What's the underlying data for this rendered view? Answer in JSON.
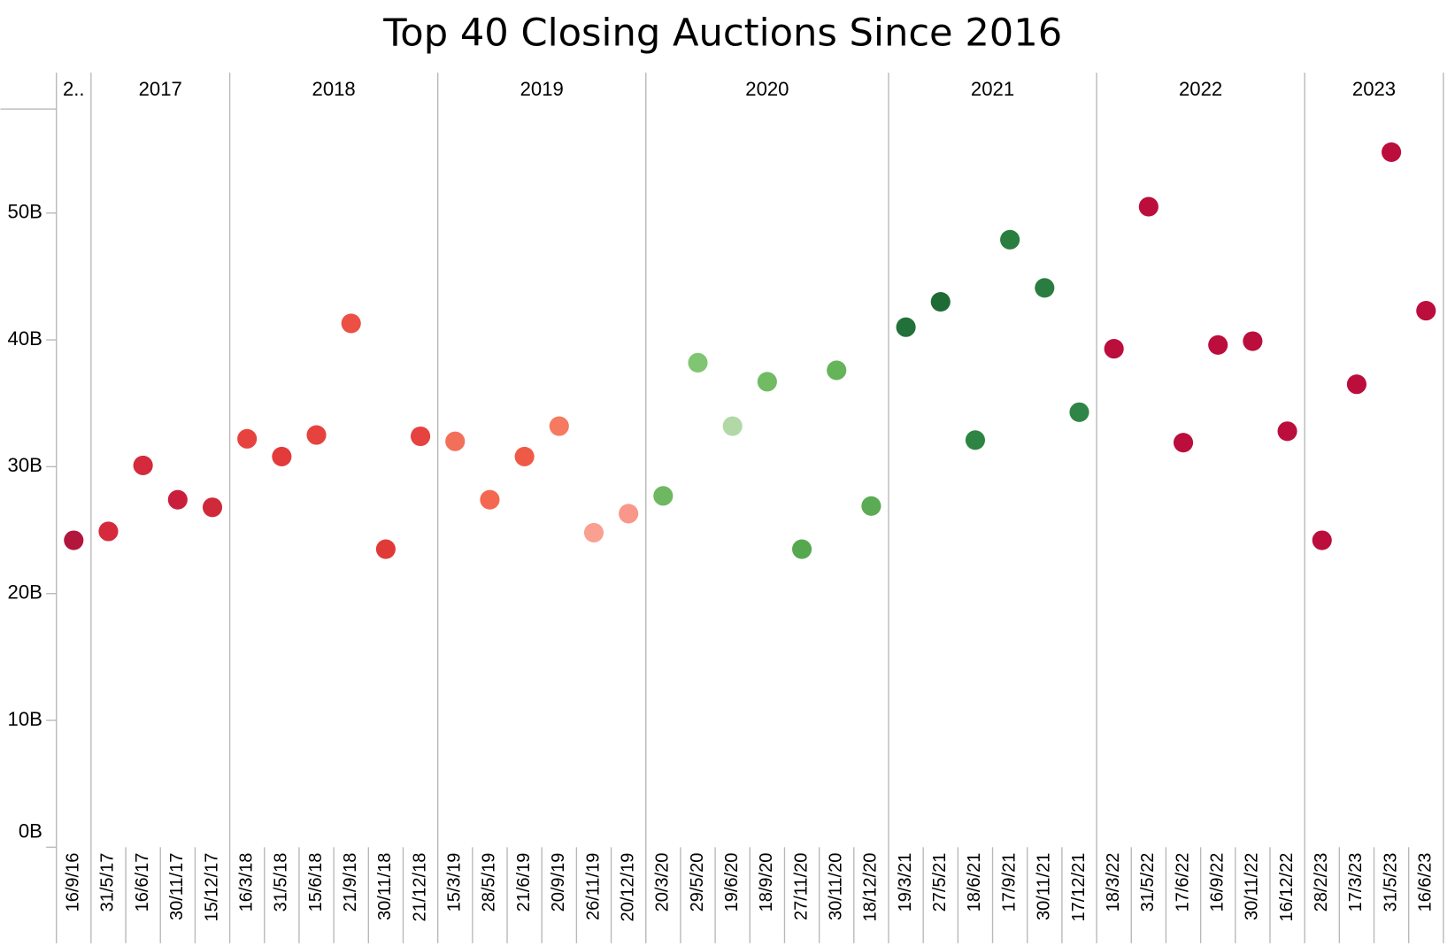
{
  "chart_data": {
    "type": "scatter",
    "title": "Top 40 Closing Auctions Since 2016",
    "ylim": [
      0,
      58.2
    ],
    "yticks": [
      {
        "value": 0,
        "label": "0B"
      },
      {
        "value": 10,
        "label": "10B"
      },
      {
        "value": 20,
        "label": "20B"
      },
      {
        "value": 30,
        "label": "30B"
      },
      {
        "value": 40,
        "label": "40B"
      },
      {
        "value": 50,
        "label": "50B"
      }
    ],
    "groups": [
      {
        "label": "2..",
        "categories": [
          "16/9/16"
        ],
        "values": [
          24.2
        ],
        "colors": [
          "#b3163c"
        ]
      },
      {
        "label": "2017",
        "categories": [
          "31/5/17",
          "16/6/17",
          "30/11/17",
          "15/12/17"
        ],
        "values": [
          24.9,
          30.1,
          27.4,
          26.8
        ],
        "colors": [
          "#d42a3c",
          "#d42a3c",
          "#c91f3d",
          "#d02a3a"
        ]
      },
      {
        "label": "2018",
        "categories": [
          "16/3/18",
          "31/5/18",
          "15/6/18",
          "21/9/18",
          "30/11/18",
          "21/12/18"
        ],
        "values": [
          32.2,
          30.8,
          32.5,
          41.3,
          23.5,
          32.4
        ],
        "colors": [
          "#e6433f",
          "#e23b3a",
          "#e6433f",
          "#ec4f44",
          "#e03a38",
          "#e64240"
        ]
      },
      {
        "label": "2019",
        "categories": [
          "15/3/19",
          "28/5/19",
          "21/6/19",
          "20/9/19",
          "26/11/19",
          "20/12/19"
        ],
        "values": [
          32.0,
          27.4,
          30.8,
          33.2,
          24.8,
          26.3
        ],
        "colors": [
          "#f27059",
          "#f3684f",
          "#ef5a47",
          "#f57a5f",
          "#f9a090",
          "#f8978a"
        ]
      },
      {
        "label": "2020",
        "categories": [
          "20/3/20",
          "29/5/20",
          "19/6/20",
          "18/9/20",
          "27/11/20",
          "30/11/20",
          "18/12/20"
        ],
        "values": [
          27.7,
          38.2,
          33.2,
          36.7,
          23.5,
          37.6,
          26.9
        ],
        "colors": [
          "#6fb862",
          "#80c572",
          "#b2d8a6",
          "#70bb63",
          "#56a84f",
          "#65b45a",
          "#5aab53"
        ]
      },
      {
        "label": "2021",
        "categories": [
          "19/3/21",
          "27/5/21",
          "18/6/21",
          "17/9/21",
          "30/11/21",
          "17/12/21"
        ],
        "values": [
          41.0,
          43.0,
          32.1,
          47.9,
          44.1,
          34.3
        ],
        "colors": [
          "#23713a",
          "#1f6b36",
          "#2e8443",
          "#2a7e40",
          "#2a7d40",
          "#2f8545"
        ]
      },
      {
        "label": "2022",
        "categories": [
          "18/3/22",
          "31/5/22",
          "17/6/22",
          "16/9/22",
          "30/11/22",
          "16/12/22"
        ],
        "values": [
          39.3,
          50.5,
          31.9,
          39.6,
          39.9,
          32.8
        ],
        "colors": [
          "#bb0e3d",
          "#bb0e3d",
          "#bb0e3d",
          "#bb0e3d",
          "#bb0e3d",
          "#bb0e3d"
        ]
      },
      {
        "label": "2023",
        "categories": [
          "28/2/23",
          "17/3/23",
          "31/5/23",
          "16/6/23"
        ],
        "values": [
          24.2,
          36.5,
          54.8,
          42.3
        ],
        "colors": [
          "#bb0e3d",
          "#bb0e3d",
          "#bb0e3d",
          "#bb0e3d"
        ]
      }
    ]
  }
}
